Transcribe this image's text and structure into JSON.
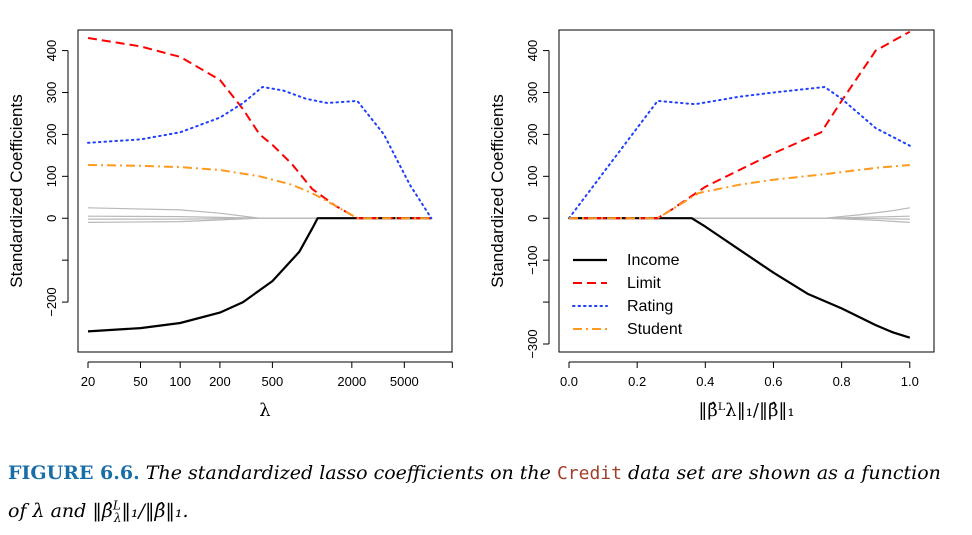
{
  "caption": {
    "label": "FIGURE 6.6.",
    "text_before": "The standardized lasso coefficients on the",
    "code": "Credit",
    "text_after": "data set are shown as a function of λ and ‖β̂",
    "text_sup": "L",
    "text_sub": "λ",
    "text_end": "‖₁/‖β̂‖₁."
  },
  "chart_data": [
    {
      "type": "line",
      "ylabel": "Standardized Coefficients",
      "xlabel": "λ",
      "xscale": "log",
      "xlim": [
        20,
        9000
      ],
      "ylim": [
        -300,
        430
      ],
      "xticks": [
        20,
        50,
        100,
        200,
        500,
        2000,
        5000
      ],
      "xtick_labels": [
        "20",
        "50",
        "100",
        "200",
        "500",
        "2000",
        "5000"
      ],
      "yticks": [
        -200,
        -100,
        0,
        100,
        200,
        300,
        400
      ],
      "ytick_labels": [
        "−200",
        "",
        "0",
        "100",
        "200",
        "300",
        "400"
      ],
      "legend": null,
      "series": [
        {
          "name": "Income",
          "color": "#000000",
          "dash": "solid",
          "x": [
            20,
            50,
            100,
            200,
            300,
            500,
            800,
            1000,
            1100,
            2000,
            5000,
            8000
          ],
          "y": [
            -270,
            -262,
            -250,
            -225,
            -200,
            -150,
            -80,
            -25,
            0,
            0,
            0,
            0
          ]
        },
        {
          "name": "Limit",
          "color": "#ff0000",
          "dash": "dashed",
          "x": [
            20,
            50,
            100,
            200,
            300,
            400,
            500,
            700,
            1000,
            1500,
            2200,
            5000,
            8000
          ],
          "y": [
            430,
            410,
            385,
            330,
            260,
            200,
            175,
            130,
            70,
            30,
            0,
            0,
            0
          ]
        },
        {
          "name": "Rating",
          "color": "#1f3fff",
          "dash": "dotted",
          "x": [
            20,
            50,
            100,
            200,
            300,
            420,
            600,
            900,
            1300,
            2200,
            3500,
            5500,
            8000
          ],
          "y": [
            180,
            188,
            205,
            240,
            275,
            313,
            305,
            285,
            275,
            280,
            200,
            80,
            0
          ]
        },
        {
          "name": "Student",
          "color": "#ff9a1f",
          "dash": "dotdash",
          "x": [
            20,
            50,
            100,
            200,
            400,
            700,
            1000,
            1500,
            2200,
            5000,
            8000
          ],
          "y": [
            127,
            125,
            122,
            115,
            100,
            80,
            60,
            30,
            0,
            0,
            0
          ]
        },
        {
          "name": "other1",
          "color": "#b8b8b8",
          "dash": "solid",
          "x": [
            20,
            100,
            200,
            400,
            8000
          ],
          "y": [
            25,
            20,
            12,
            0,
            0
          ]
        },
        {
          "name": "other2",
          "color": "#b8b8b8",
          "dash": "solid",
          "x": [
            20,
            100,
            200,
            400,
            8000
          ],
          "y": [
            5,
            4,
            2,
            0,
            0
          ]
        },
        {
          "name": "other3",
          "color": "#b8b8b8",
          "dash": "solid",
          "x": [
            20,
            100,
            200,
            400,
            8000
          ],
          "y": [
            -2,
            -2,
            -1,
            0,
            0
          ]
        },
        {
          "name": "other4",
          "color": "#b8b8b8",
          "dash": "solid",
          "x": [
            20,
            100,
            200,
            400,
            8000
          ],
          "y": [
            -10,
            -8,
            -4,
            0,
            0
          ]
        }
      ]
    },
    {
      "type": "line",
      "ylabel": "Standardized Coefficients",
      "xlabel": "‖β̂ᴸλ‖₁/‖β̂‖₁",
      "xscale": "linear",
      "xlim": [
        0,
        1.03
      ],
      "ylim": [
        -300,
        430
      ],
      "xticks": [
        0.0,
        0.2,
        0.4,
        0.6,
        0.8,
        1.0
      ],
      "xtick_labels": [
        "0.0",
        "0.2",
        "0.4",
        "0.6",
        "0.8",
        "1.0"
      ],
      "yticks": [
        -300,
        -200,
        -100,
        0,
        100,
        200,
        300,
        400
      ],
      "ytick_labels": [
        "−300",
        "",
        "−100",
        "0",
        "100",
        "200",
        "300",
        "400"
      ],
      "legend": {
        "position": "bottom-left",
        "entries": [
          "Income",
          "Limit",
          "Rating",
          "Student"
        ]
      },
      "series": [
        {
          "name": "Income",
          "color": "#000000",
          "dash": "solid",
          "x": [
            0.0,
            0.36,
            0.4,
            0.5,
            0.6,
            0.7,
            0.8,
            0.9,
            0.95,
            1.0
          ],
          "y": [
            0,
            0,
            -20,
            -75,
            -130,
            -180,
            -215,
            -255,
            -272,
            -285
          ]
        },
        {
          "name": "Limit",
          "color": "#ff0000",
          "dash": "dashed",
          "x": [
            0.0,
            0.26,
            0.3,
            0.4,
            0.5,
            0.6,
            0.74,
            0.8,
            0.9,
            1.0
          ],
          "y": [
            0,
            0,
            20,
            75,
            115,
            155,
            205,
            280,
            400,
            445
          ]
        },
        {
          "name": "Rating",
          "color": "#1f3fff",
          "dash": "dotted",
          "x": [
            0.0,
            0.26,
            0.37,
            0.5,
            0.6,
            0.75,
            0.8,
            0.9,
            1.0
          ],
          "y": [
            0,
            280,
            272,
            290,
            300,
            313,
            285,
            215,
            173
          ]
        },
        {
          "name": "Student",
          "color": "#ff9a1f",
          "dash": "dotdash",
          "x": [
            0.0,
            0.26,
            0.3,
            0.38,
            0.5,
            0.6,
            0.75,
            0.9,
            1.0
          ],
          "y": [
            0,
            0,
            20,
            60,
            80,
            92,
            105,
            120,
            127
          ]
        },
        {
          "name": "other1",
          "color": "#b8b8b8",
          "dash": "solid",
          "x": [
            0.0,
            0.75,
            0.85,
            0.95,
            1.0
          ],
          "y": [
            0,
            0,
            8,
            18,
            25
          ]
        },
        {
          "name": "other2",
          "color": "#b8b8b8",
          "dash": "solid",
          "x": [
            0.0,
            0.75,
            0.9,
            1.0
          ],
          "y": [
            0,
            0,
            3,
            5
          ]
        },
        {
          "name": "other3",
          "color": "#b8b8b8",
          "dash": "solid",
          "x": [
            0.0,
            0.75,
            0.9,
            1.0
          ],
          "y": [
            0,
            0,
            -1,
            -2
          ]
        },
        {
          "name": "other4",
          "color": "#b8b8b8",
          "dash": "solid",
          "x": [
            0.0,
            0.75,
            0.9,
            1.0
          ],
          "y": [
            0,
            0,
            -5,
            -10
          ]
        }
      ]
    }
  ]
}
